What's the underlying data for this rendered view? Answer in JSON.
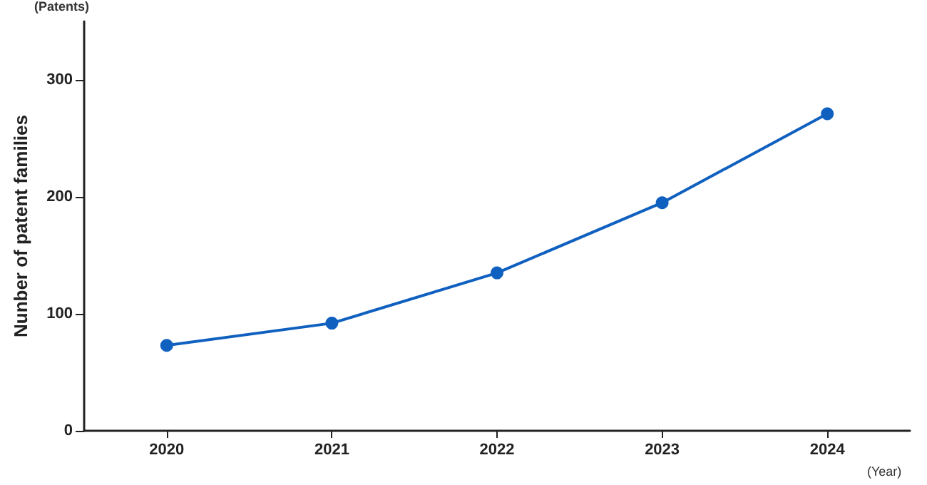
{
  "chart_data": {
    "type": "line",
    "ylabel": "Nunber of patent families",
    "xlabel": "(Year)",
    "annotations": [
      "(Patents)"
    ],
    "categories": [
      "2020",
      "2021",
      "2022",
      "2023",
      "2024"
    ],
    "series": [
      {
        "color": "#1060c0",
        "values": [
          73,
          92,
          135,
          195,
          271
        ]
      }
    ],
    "ylim": [
      0,
      350
    ],
    "yticks": [
      0,
      100,
      200,
      300
    ],
    "grid": false,
    "marker": "circle",
    "line_style": "solid"
  }
}
